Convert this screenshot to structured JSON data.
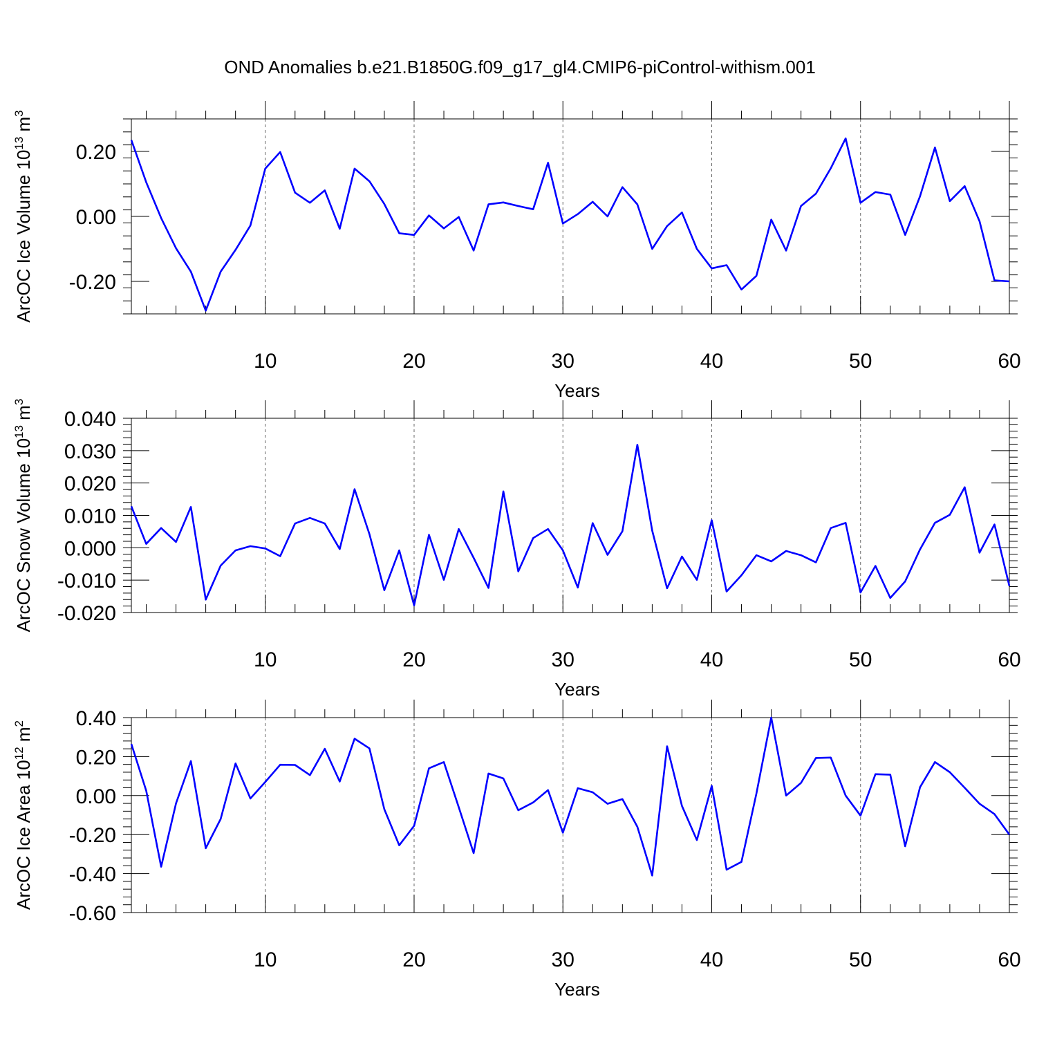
{
  "colors": {
    "series": "#0000ff",
    "background": "#ffffff",
    "axes": "#000000"
  },
  "figure_title": "OND Anomalies b.e21.B1850G.f09_g17_gl4.CMIP6-piControl-withism.001",
  "chart_data": [
    {
      "type": "line",
      "ylabel": {
        "text": "ArcOC Ice Volume 10",
        "sup": "13",
        "unit": " m",
        "unit_sup": "3"
      },
      "xlabel": "Years",
      "xlim": [
        1,
        60
      ],
      "ylim": [
        -0.3,
        0.3
      ],
      "xticks": [
        10,
        20,
        30,
        40,
        50,
        60
      ],
      "xtick_labels": [
        "10",
        "20",
        "30",
        "40",
        "50",
        "60"
      ],
      "yticks": [
        -0.2,
        0.0,
        0.2
      ],
      "ytick_labels": [
        "-0.20",
        "0.00",
        "0.20"
      ],
      "y_minor_step": 0.04,
      "grid": "vertical dashed at x-ticks",
      "x": [
        1,
        2,
        3,
        4,
        5,
        6,
        7,
        8,
        9,
        10,
        11,
        12,
        13,
        14,
        15,
        16,
        17,
        18,
        19,
        20,
        21,
        22,
        23,
        24,
        25,
        26,
        27,
        28,
        29,
        30,
        31,
        32,
        33,
        34,
        35,
        36,
        37,
        38,
        39,
        40,
        41,
        42,
        43,
        44,
        45,
        46,
        47,
        48,
        49,
        50,
        51,
        52,
        53,
        54,
        55,
        56,
        57,
        58,
        59,
        60
      ],
      "values": [
        0.235,
        0.105,
        -0.005,
        -0.098,
        -0.17,
        -0.29,
        -0.17,
        -0.103,
        -0.028,
        0.147,
        0.198,
        0.073,
        0.042,
        0.08,
        -0.038,
        0.147,
        0.108,
        0.038,
        -0.052,
        -0.057,
        0.003,
        -0.037,
        -0.002,
        -0.105,
        0.037,
        0.043,
        0.032,
        0.022,
        0.165,
        -0.022,
        0.007,
        0.045,
        0.0,
        0.09,
        0.037,
        -0.1,
        -0.03,
        0.012,
        -0.1,
        -0.16,
        -0.15,
        -0.225,
        -0.183,
        -0.01,
        -0.105,
        0.032,
        0.07,
        0.148,
        0.24,
        0.042,
        0.075,
        0.067,
        -0.057,
        0.062,
        0.212,
        0.047,
        0.093,
        -0.015,
        -0.197,
        -0.2
      ]
    },
    {
      "type": "line",
      "ylabel": {
        "text": "ArcOC Snow Volume 10",
        "sup": "13",
        "unit": " m",
        "unit_sup": "3"
      },
      "xlabel": "Years",
      "xlim": [
        1,
        60
      ],
      "ylim": [
        -0.02,
        0.04
      ],
      "xticks": [
        10,
        20,
        30,
        40,
        50,
        60
      ],
      "xtick_labels": [
        "10",
        "20",
        "30",
        "40",
        "50",
        "60"
      ],
      "yticks": [
        -0.02,
        -0.01,
        0.0,
        0.01,
        0.02,
        0.03,
        0.04
      ],
      "ytick_labels": [
        "-0.020",
        "-0.010",
        "0.000",
        "0.010",
        "0.020",
        "0.030",
        "0.040"
      ],
      "y_minor_step": 0.002,
      "grid": "vertical dashed at x-ticks",
      "x": [
        1,
        2,
        3,
        4,
        5,
        6,
        7,
        8,
        9,
        10,
        11,
        12,
        13,
        14,
        15,
        16,
        17,
        18,
        19,
        20,
        21,
        22,
        23,
        24,
        25,
        26,
        27,
        28,
        29,
        30,
        31,
        32,
        33,
        34,
        35,
        36,
        37,
        38,
        39,
        40,
        41,
        42,
        43,
        44,
        45,
        46,
        47,
        48,
        49,
        50,
        51,
        52,
        53,
        54,
        55,
        56,
        57,
        58,
        59,
        60
      ],
      "values": [
        0.0128,
        0.0012,
        0.0061,
        0.0018,
        0.0126,
        -0.016,
        -0.0055,
        -0.0008,
        0.0005,
        -0.0002,
        -0.0026,
        0.0075,
        0.0092,
        0.0075,
        -0.0004,
        0.0181,
        0.0042,
        -0.0131,
        -0.0008,
        -0.0178,
        0.004,
        -0.0099,
        0.0058,
        -0.0031,
        -0.0124,
        0.0174,
        -0.0073,
        0.003,
        0.0058,
        -0.0008,
        -0.0123,
        0.0076,
        -0.0022,
        0.0051,
        0.0318,
        0.0053,
        -0.0125,
        -0.0027,
        -0.0099,
        0.0085,
        -0.0135,
        -0.0085,
        -0.0023,
        -0.0042,
        -0.001,
        -0.0023,
        -0.0045,
        0.0061,
        0.0077,
        -0.0138,
        -0.0056,
        -0.0155,
        -0.0104,
        -0.0005,
        0.0077,
        0.0102,
        0.0187,
        -0.0015,
        0.0072,
        -0.0118
      ]
    },
    {
      "type": "line",
      "ylabel": {
        "text": "ArcOC Ice Area 10",
        "sup": "12",
        "unit": " m",
        "unit_sup": "2"
      },
      "xlabel": "Years",
      "xlim": [
        1,
        60
      ],
      "ylim": [
        -0.6,
        0.4
      ],
      "xticks": [
        10,
        20,
        30,
        40,
        50,
        60
      ],
      "xtick_labels": [
        "10",
        "20",
        "30",
        "40",
        "50",
        "60"
      ],
      "yticks": [
        -0.6,
        -0.4,
        -0.2,
        0.0,
        0.2,
        0.4
      ],
      "ytick_labels": [
        "-0.60",
        "-0.40",
        "-0.20",
        "0.00",
        "0.20",
        "0.40"
      ],
      "y_minor_step": 0.04,
      "grid": "vertical dashed at x-ticks",
      "x": [
        1,
        2,
        3,
        4,
        5,
        6,
        7,
        8,
        9,
        10,
        11,
        12,
        13,
        14,
        15,
        16,
        17,
        18,
        19,
        20,
        21,
        22,
        23,
        24,
        25,
        26,
        27,
        28,
        29,
        30,
        31,
        32,
        33,
        34,
        35,
        36,
        37,
        38,
        39,
        40,
        41,
        42,
        43,
        44,
        45,
        46,
        47,
        48,
        49,
        50,
        51,
        52,
        53,
        54,
        55,
        56,
        57,
        58,
        59,
        60
      ],
      "values": [
        0.265,
        0.025,
        -0.365,
        -0.04,
        0.177,
        -0.27,
        -0.12,
        0.165,
        -0.015,
        0.07,
        0.158,
        0.157,
        0.105,
        0.24,
        0.072,
        0.292,
        0.242,
        -0.07,
        -0.255,
        -0.155,
        0.14,
        0.172,
        -0.06,
        -0.295,
        0.113,
        0.088,
        -0.075,
        -0.035,
        0.028,
        -0.19,
        0.038,
        0.017,
        -0.042,
        -0.018,
        -0.16,
        -0.41,
        0.253,
        -0.053,
        -0.228,
        0.05,
        -0.38,
        -0.34,
        0.01,
        0.4,
        0.0,
        0.065,
        0.193,
        0.195,
        0.0,
        -0.103,
        0.11,
        0.107,
        -0.26,
        0.043,
        0.172,
        0.12,
        0.04,
        -0.042,
        -0.095,
        -0.2
      ]
    }
  ]
}
